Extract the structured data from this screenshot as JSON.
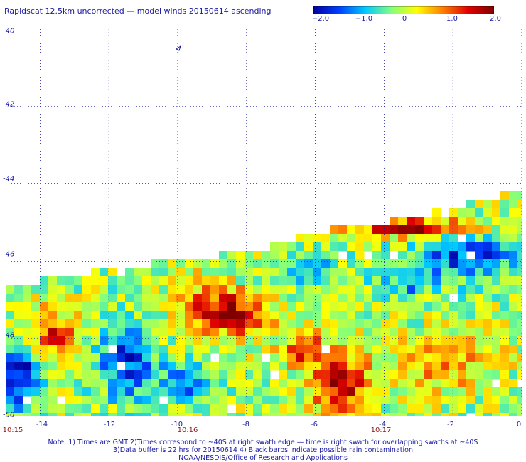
{
  "header": {
    "title": "Rapidscat 12.5km uncorrected — model winds 20150614 ascending"
  },
  "colorbar": {
    "ticks": [
      "−2.0",
      "−1.0",
      "0",
      "1.0",
      "2.0"
    ],
    "range": [
      -2.0,
      2.0
    ],
    "colors": [
      "#0000a0",
      "#0040ff",
      "#00c8ff",
      "#80ff80",
      "#ffff00",
      "#ff8000",
      "#e00000",
      "#800000"
    ]
  },
  "map": {
    "lat_labels": [
      "-40",
      "-42",
      "-44",
      "-46",
      "-48",
      "-50"
    ],
    "lon_labels": [
      "-14",
      "-12",
      "-10",
      "-8",
      "-6",
      "-4",
      "-2",
      "0"
    ],
    "lat_range": [
      -50,
      -40
    ],
    "lon_range": [
      -15,
      0
    ],
    "times": [
      "10:15",
      "10:16",
      "10:17"
    ],
    "grid": "dotted",
    "barb_icon": "wind-barb-icon"
  },
  "footer": {
    "note1": "Note: 1) Times are GMT 2)Times correspond to ~40S at right swath edge — time is right swath for overlapping swaths at ~40S",
    "note2": "3)Data buffer is 22 hrs for 20150614 4) Black barbs indicate possible rain contamination",
    "credit": "NOAA/NESDIS/Office of Research and Applications"
  }
}
